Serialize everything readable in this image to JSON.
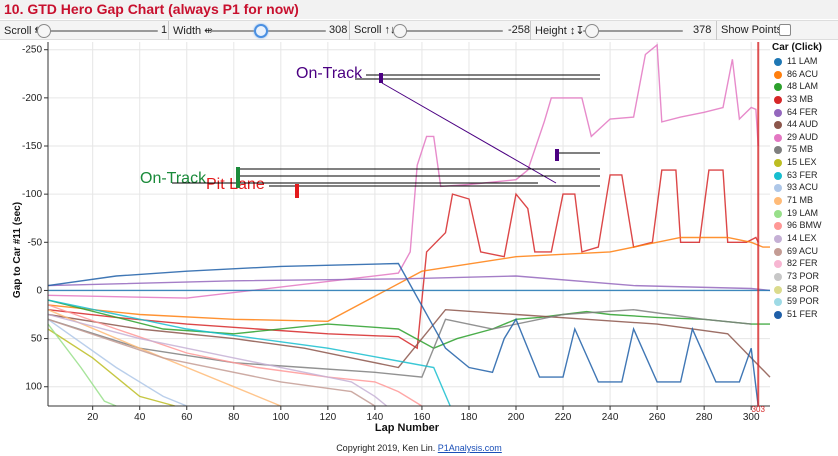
{
  "header": {
    "title": "10. GTD Hero Gap Chart (always P1 for now)"
  },
  "controls": {
    "scroll_h": {
      "label": "Scroll ⇆",
      "value": "1"
    },
    "width": {
      "label": "Width ⇹",
      "value": "308"
    },
    "scroll_v": {
      "label": "Scroll ↑↓",
      "value": "-258"
    },
    "height": {
      "label": "Height ↕↧",
      "value": "378"
    },
    "show_points": {
      "label": "Show Points",
      "checked": false
    }
  },
  "legend": {
    "title": "Car (Click)",
    "items": [
      {
        "label": "11 LAM",
        "color": "#1f77b4"
      },
      {
        "label": "86 ACU",
        "color": "#ff7f0e"
      },
      {
        "label": "48 LAM",
        "color": "#2ca02c"
      },
      {
        "label": "33 MB",
        "color": "#d62728"
      },
      {
        "label": "64 FER",
        "color": "#9467bd"
      },
      {
        "label": "44 AUD",
        "color": "#8c564b"
      },
      {
        "label": "29 AUD",
        "color": "#e377c2"
      },
      {
        "label": "75 MB",
        "color": "#7f7f7f"
      },
      {
        "label": "15 LEX",
        "color": "#bcbd22"
      },
      {
        "label": "63 FER",
        "color": "#17becf"
      },
      {
        "label": "93 ACU",
        "color": "#aec7e8"
      },
      {
        "label": "71 MB",
        "color": "#ffbb78"
      },
      {
        "label": "19 LAM",
        "color": "#98df8a"
      },
      {
        "label": "96 BMW",
        "color": "#ff9896"
      },
      {
        "label": "14 LEX",
        "color": "#c5b0d5"
      },
      {
        "label": "69 ACU",
        "color": "#c49c94"
      },
      {
        "label": "82 FER",
        "color": "#f7b6d2"
      },
      {
        "label": "73 POR",
        "color": "#c7c7c7"
      },
      {
        "label": "58 POR",
        "color": "#dbdb8d"
      },
      {
        "label": "59 POR",
        "color": "#9edae5"
      },
      {
        "label": "51 FER",
        "color": "#1f5fa8"
      }
    ]
  },
  "chart_data": {
    "type": "line",
    "title": "",
    "xlabel": "Lap Number",
    "ylabel": "Gap to Car #11 (sec)",
    "xlim": [
      1,
      308
    ],
    "ylim": [
      -258,
      120
    ],
    "y_inverted": true,
    "x_ticks": [
      20,
      40,
      60,
      80,
      100,
      120,
      140,
      160,
      180,
      200,
      220,
      240,
      260,
      280,
      300
    ],
    "y_ticks": [
      -250,
      -200,
      -150,
      -100,
      -50,
      0,
      50,
      100
    ],
    "grid": true,
    "legend_position": "right",
    "annotations": [
      {
        "text": "On-Track",
        "color": "#4b0082"
      },
      {
        "text": "Pit Lane",
        "color": "#e31a1c"
      },
      {
        "text": "On-Track",
        "color": "#1a8a3a"
      }
    ],
    "end_marker": {
      "lap": 303,
      "label": "303"
    },
    "series": [
      {
        "name": "11 LAM",
        "color": "#1f77b4",
        "points": [
          [
            1,
            0
          ],
          [
            308,
            0
          ]
        ]
      },
      {
        "name": "29 AUD",
        "color": "#e377c2",
        "points": [
          [
            1,
            5
          ],
          [
            60,
            8
          ],
          [
            150,
            -18
          ],
          [
            155,
            -40
          ],
          [
            158,
            -130
          ],
          [
            162,
            -160
          ],
          [
            165,
            -160
          ],
          [
            168,
            -108
          ],
          [
            180,
            -110
          ],
          [
            200,
            -115
          ],
          [
            205,
            -125
          ],
          [
            212,
            -175
          ],
          [
            215,
            -200
          ],
          [
            228,
            -200
          ],
          [
            232,
            -160
          ],
          [
            240,
            -178
          ],
          [
            250,
            -180
          ],
          [
            255,
            -245
          ],
          [
            260,
            -255
          ],
          [
            262,
            -175
          ],
          [
            270,
            -180
          ],
          [
            280,
            -185
          ],
          [
            288,
            -190
          ],
          [
            292,
            -240
          ],
          [
            295,
            -178
          ],
          [
            300,
            -190
          ],
          [
            302,
            -188
          ],
          [
            303,
            -150
          ]
        ]
      },
      {
        "name": "33 MB",
        "color": "#d62728",
        "points": [
          [
            1,
            20
          ],
          [
            30,
            28
          ],
          [
            60,
            35
          ],
          [
            90,
            40
          ],
          [
            120,
            45
          ],
          [
            150,
            48
          ],
          [
            158,
            60
          ],
          [
            162,
            -40
          ],
          [
            170,
            -60
          ],
          [
            173,
            -100
          ],
          [
            180,
            -95
          ],
          [
            185,
            -40
          ],
          [
            195,
            -35
          ],
          [
            200,
            -100
          ],
          [
            205,
            -85
          ],
          [
            208,
            -40
          ],
          [
            215,
            -40
          ],
          [
            220,
            -100
          ],
          [
            225,
            -100
          ],
          [
            228,
            -40
          ],
          [
            235,
            -45
          ],
          [
            240,
            -120
          ],
          [
            245,
            -120
          ],
          [
            250,
            -45
          ],
          [
            258,
            -50
          ],
          [
            262,
            -125
          ],
          [
            268,
            -125
          ],
          [
            270,
            -50
          ],
          [
            278,
            -50
          ],
          [
            282,
            -125
          ],
          [
            288,
            -125
          ],
          [
            290,
            -50
          ],
          [
            298,
            -50
          ],
          [
            302,
            -55
          ],
          [
            303,
            -50
          ]
        ]
      },
      {
        "name": "86 ACU",
        "color": "#ff7f0e",
        "points": [
          [
            1,
            15
          ],
          [
            40,
            25
          ],
          [
            80,
            30
          ],
          [
            120,
            32
          ],
          [
            160,
            -20
          ],
          [
            200,
            -35
          ],
          [
            240,
            -40
          ],
          [
            270,
            -55
          ],
          [
            290,
            -55
          ],
          [
            300,
            -50
          ],
          [
            305,
            -45
          ],
          [
            308,
            -45
          ]
        ]
      },
      {
        "name": "48 LAM",
        "color": "#2ca02c",
        "points": [
          [
            1,
            10
          ],
          [
            50,
            40
          ],
          [
            80,
            45
          ],
          [
            120,
            35
          ],
          [
            150,
            40
          ],
          [
            165,
            60
          ],
          [
            175,
            50
          ],
          [
            190,
            40
          ],
          [
            200,
            30
          ],
          [
            210,
            28
          ],
          [
            220,
            25
          ],
          [
            230,
            22
          ],
          [
            240,
            25
          ],
          [
            260,
            28
          ],
          [
            280,
            30
          ],
          [
            300,
            35
          ],
          [
            308,
            35
          ]
        ]
      },
      {
        "name": "44 AUD",
        "color": "#8c564b",
        "points": [
          [
            1,
            25
          ],
          [
            40,
            40
          ],
          [
            80,
            50
          ],
          [
            110,
            60
          ],
          [
            130,
            70
          ],
          [
            150,
            80
          ],
          [
            170,
            20
          ],
          [
            200,
            25
          ],
          [
            230,
            30
          ],
          [
            260,
            35
          ],
          [
            290,
            45
          ],
          [
            300,
            70
          ],
          [
            308,
            90
          ]
        ]
      },
      {
        "name": "64 FER",
        "color": "#9467bd",
        "points": [
          [
            1,
            -5
          ],
          [
            80,
            -10
          ],
          [
            150,
            -12
          ],
          [
            200,
            -15
          ],
          [
            250,
            -5
          ],
          [
            300,
            -2
          ],
          [
            308,
            0
          ]
        ]
      },
      {
        "name": "75 MB",
        "color": "#7f7f7f",
        "points": [
          [
            1,
            30
          ],
          [
            40,
            60
          ],
          [
            80,
            75
          ],
          [
            110,
            80
          ],
          [
            140,
            85
          ],
          [
            160,
            90
          ],
          [
            170,
            30
          ],
          [
            190,
            40
          ],
          [
            220,
            25
          ],
          [
            250,
            20
          ],
          [
            280,
            30
          ],
          [
            300,
            35
          ]
        ]
      },
      {
        "name": "15 LEX",
        "color": "#bcbd22",
        "points": [
          [
            1,
            40
          ],
          [
            20,
            70
          ],
          [
            40,
            110
          ],
          [
            55,
            120
          ]
        ]
      },
      {
        "name": "63 FER",
        "color": "#17becf",
        "points": [
          [
            1,
            10
          ],
          [
            60,
            40
          ],
          [
            120,
            60
          ],
          [
            165,
            80
          ],
          [
            172,
            120
          ]
        ]
      },
      {
        "name": "93 ACU",
        "color": "#aec7e8",
        "points": [
          [
            1,
            30
          ],
          [
            30,
            80
          ],
          [
            50,
            110
          ],
          [
            60,
            120
          ]
        ]
      },
      {
        "name": "71 MB",
        "color": "#ffbb78",
        "points": [
          [
            1,
            20
          ],
          [
            40,
            60
          ],
          [
            80,
            100
          ],
          [
            100,
            120
          ]
        ]
      },
      {
        "name": "19 LAM",
        "color": "#98df8a",
        "points": [
          [
            1,
            35
          ],
          [
            15,
            80
          ],
          [
            25,
            115
          ],
          [
            30,
            120
          ]
        ]
      },
      {
        "name": "96 BMW",
        "color": "#ff9896",
        "points": [
          [
            1,
            15
          ],
          [
            30,
            40
          ],
          [
            60,
            65
          ],
          [
            90,
            80
          ],
          [
            120,
            90
          ],
          [
            140,
            95
          ],
          [
            150,
            105
          ],
          [
            160,
            120
          ]
        ]
      },
      {
        "name": "14 LEX",
        "color": "#c5b0d5",
        "points": [
          [
            1,
            25
          ],
          [
            40,
            50
          ],
          [
            80,
            70
          ],
          [
            110,
            85
          ],
          [
            130,
            95
          ],
          [
            140,
            110
          ],
          [
            145,
            120
          ]
        ]
      },
      {
        "name": "69 ACU",
        "color": "#c49c94",
        "points": [
          [
            1,
            30
          ],
          [
            50,
            70
          ],
          [
            100,
            95
          ],
          [
            130,
            105
          ],
          [
            140,
            120
          ]
        ]
      },
      {
        "name": "51 FER",
        "color": "#1f5fa8",
        "points": [
          [
            1,
            -5
          ],
          [
            30,
            -15
          ],
          [
            60,
            -20
          ],
          [
            100,
            -25
          ],
          [
            150,
            -28
          ],
          [
            170,
            60
          ],
          [
            180,
            80
          ],
          [
            190,
            85
          ],
          [
            195,
            50
          ],
          [
            200,
            30
          ],
          [
            210,
            90
          ],
          [
            220,
            90
          ],
          [
            225,
            40
          ],
          [
            235,
            95
          ],
          [
            245,
            95
          ],
          [
            250,
            40
          ],
          [
            260,
            95
          ],
          [
            270,
            95
          ],
          [
            275,
            40
          ],
          [
            285,
            95
          ],
          [
            295,
            95
          ],
          [
            300,
            60
          ],
          [
            303,
            120
          ]
        ]
      }
    ]
  },
  "footer": {
    "copyright": "Copyright 2019, Ken Lin.",
    "link": "P1Analysis.com"
  }
}
